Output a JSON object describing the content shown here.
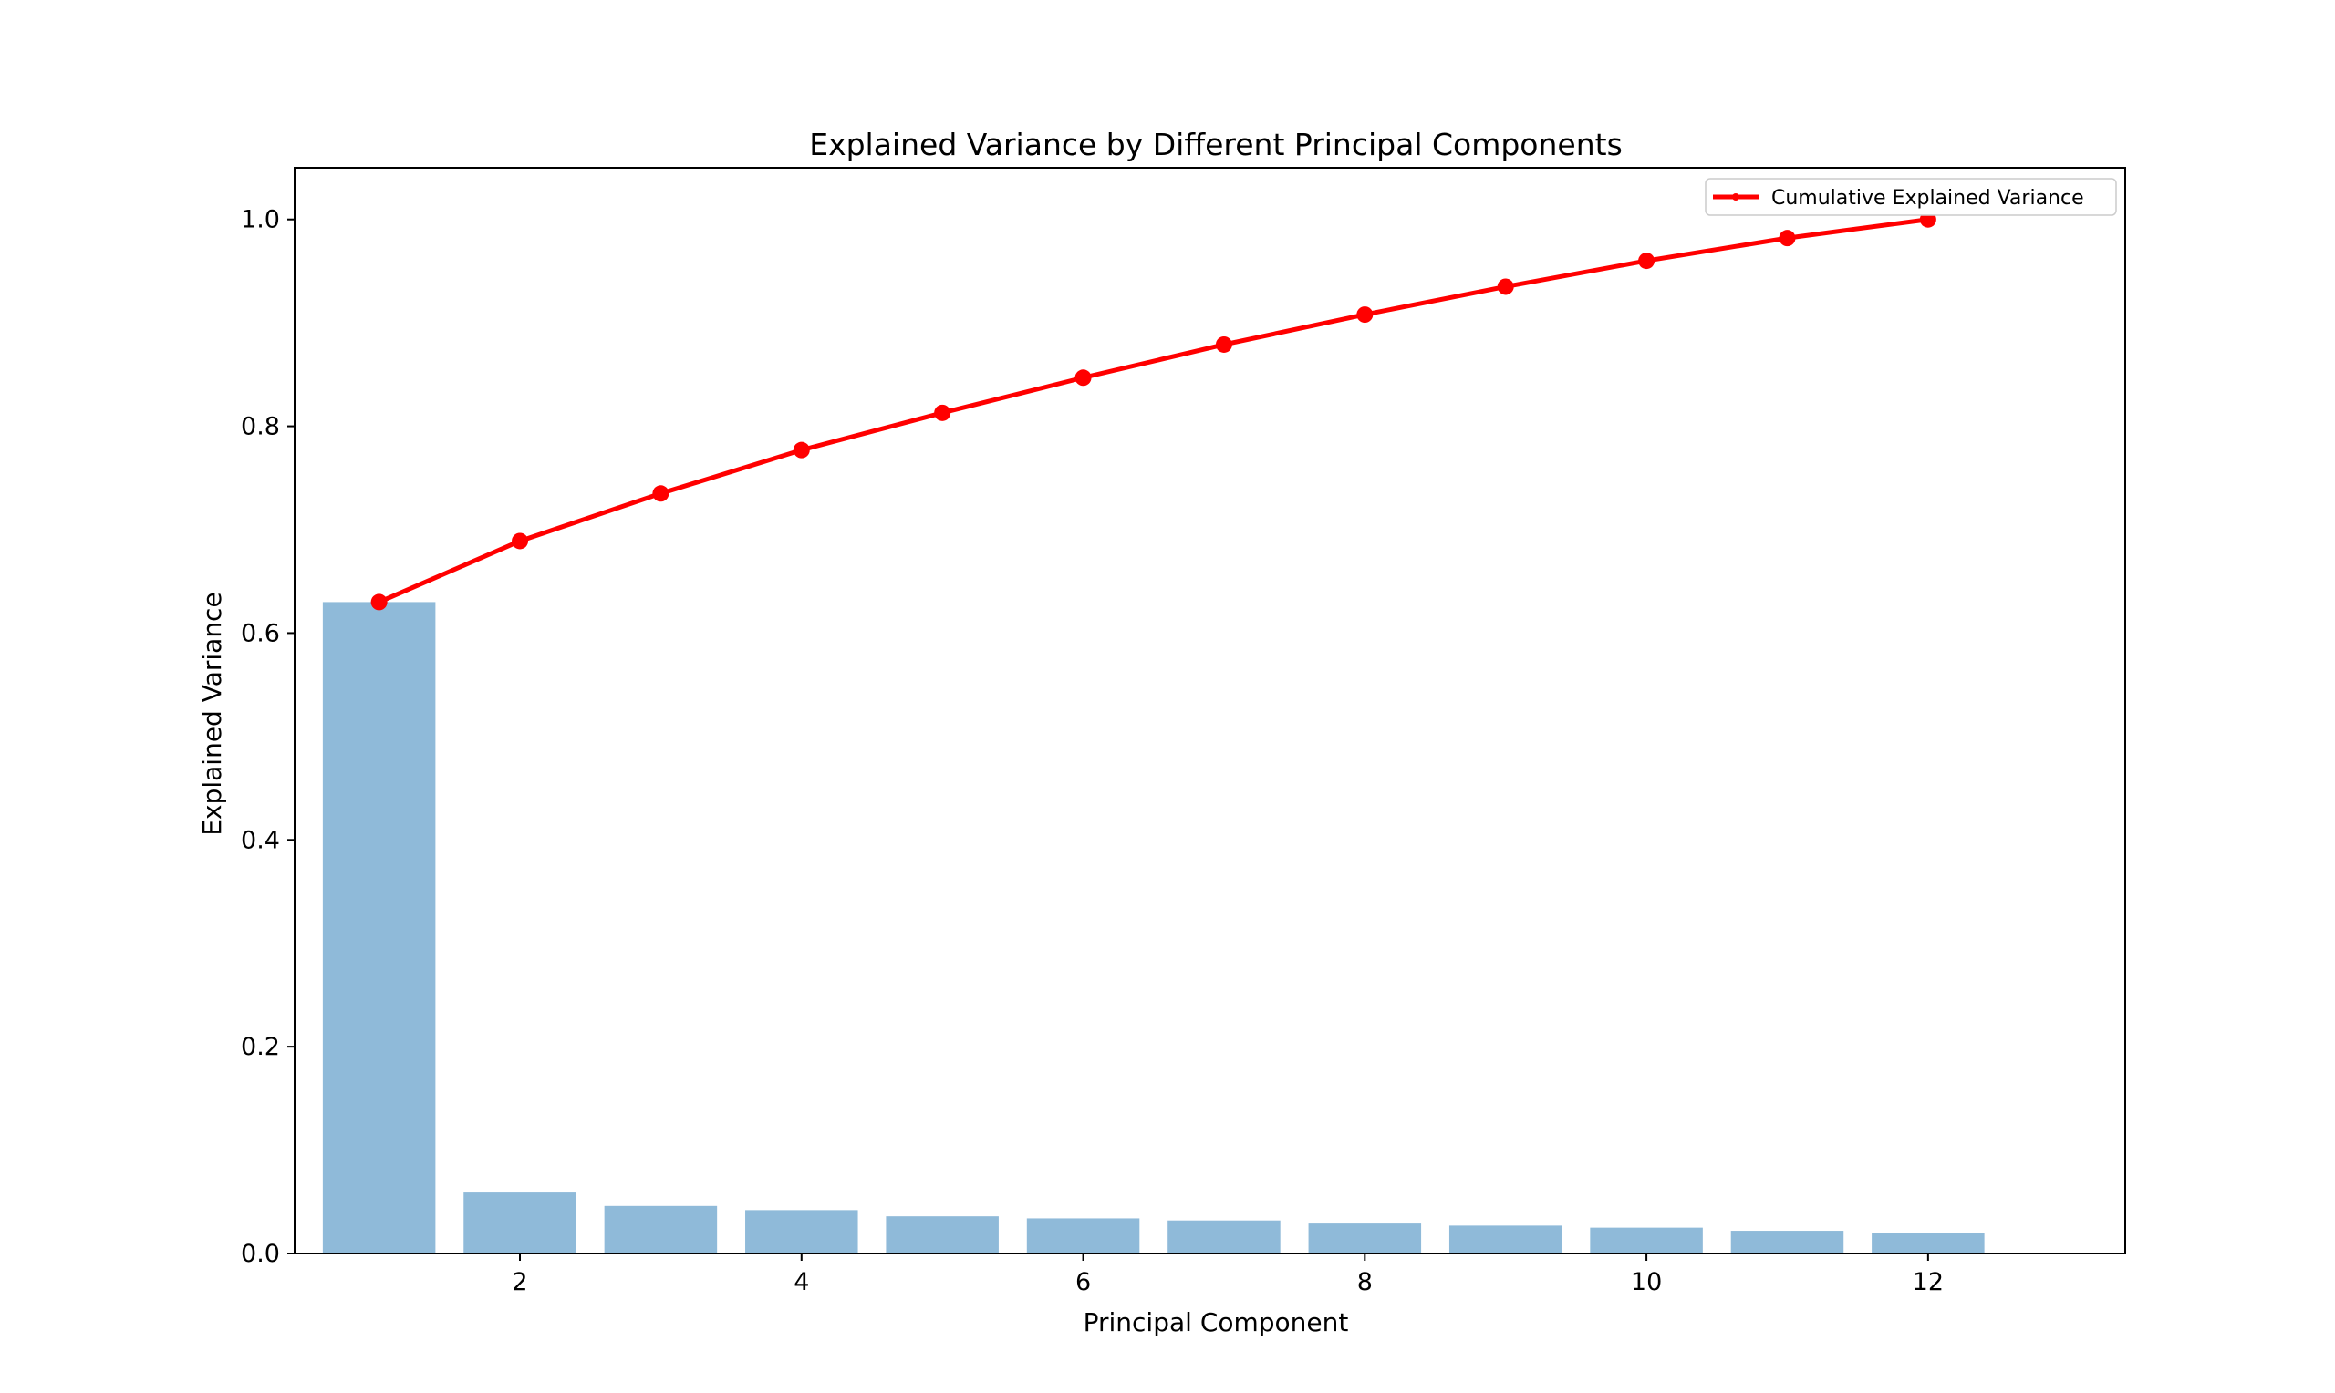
{
  "chart_data": {
    "type": "bar",
    "title": "Explained Variance by Different Principal Components",
    "xlabel": "Principal Component",
    "ylabel": "Explained Variance",
    "x": [
      1,
      2,
      3,
      4,
      5,
      6,
      7,
      8,
      9,
      10,
      11,
      12
    ],
    "xticks": [
      "2",
      "4",
      "6",
      "8",
      "10",
      "12"
    ],
    "xlim": [
      0.4,
      13.4
    ],
    "yticks": [
      "0.0",
      "0.2",
      "0.4",
      "0.6",
      "0.8",
      "1.0"
    ],
    "ylim": [
      0,
      1.05
    ],
    "grid": false,
    "series": [
      {
        "type": "bar",
        "color": "#8fbad9",
        "values": [
          0.63,
          0.059,
          0.046,
          0.042,
          0.036,
          0.034,
          0.032,
          0.029,
          0.027,
          0.025,
          0.022,
          0.02
        ]
      },
      {
        "type": "line",
        "name": "Cumulative Explained Variance",
        "color": "#ff0000",
        "marker": "circle",
        "values": [
          0.63,
          0.689,
          0.735,
          0.777,
          0.813,
          0.847,
          0.879,
          0.908,
          0.935,
          0.96,
          0.982,
          1.0
        ]
      }
    ],
    "legend": {
      "position": "top-right",
      "entries": [
        "Cumulative Explained Variance"
      ]
    }
  }
}
